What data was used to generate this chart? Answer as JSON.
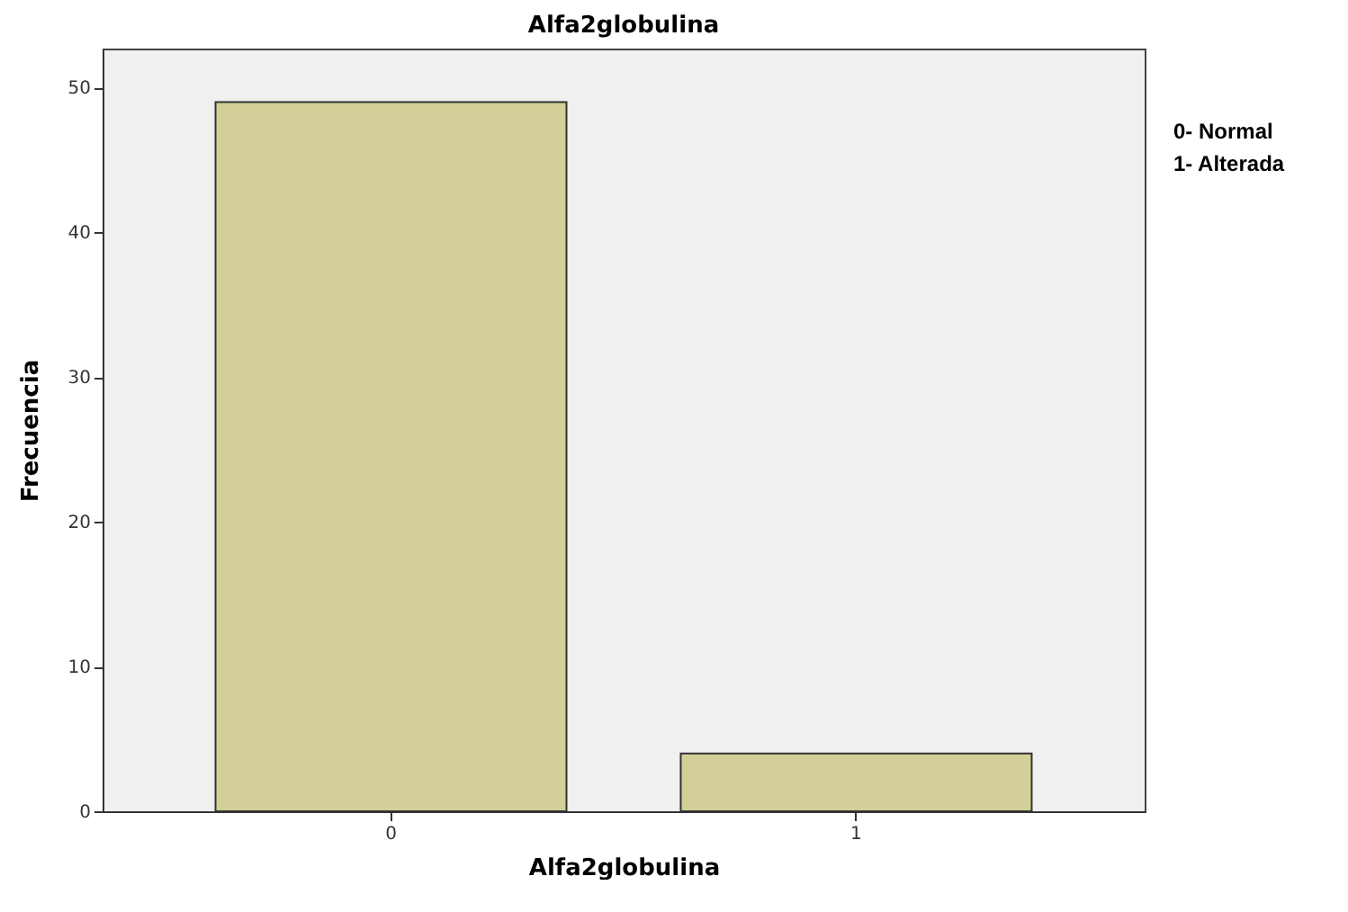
{
  "chart_data": {
    "type": "bar",
    "title": "Alfa2globulina",
    "xlabel": "Alfa2globulina",
    "ylabel": "Frecuencia",
    "categories": [
      "0",
      "1"
    ],
    "values": [
      49,
      4
    ],
    "color": "#d3cf98",
    "ylim": [
      0,
      52.7
    ],
    "yticks": [
      0,
      10,
      20,
      30,
      40,
      50
    ],
    "grid": false,
    "annotations": [
      "0- Normal",
      "1- Alterada"
    ]
  }
}
